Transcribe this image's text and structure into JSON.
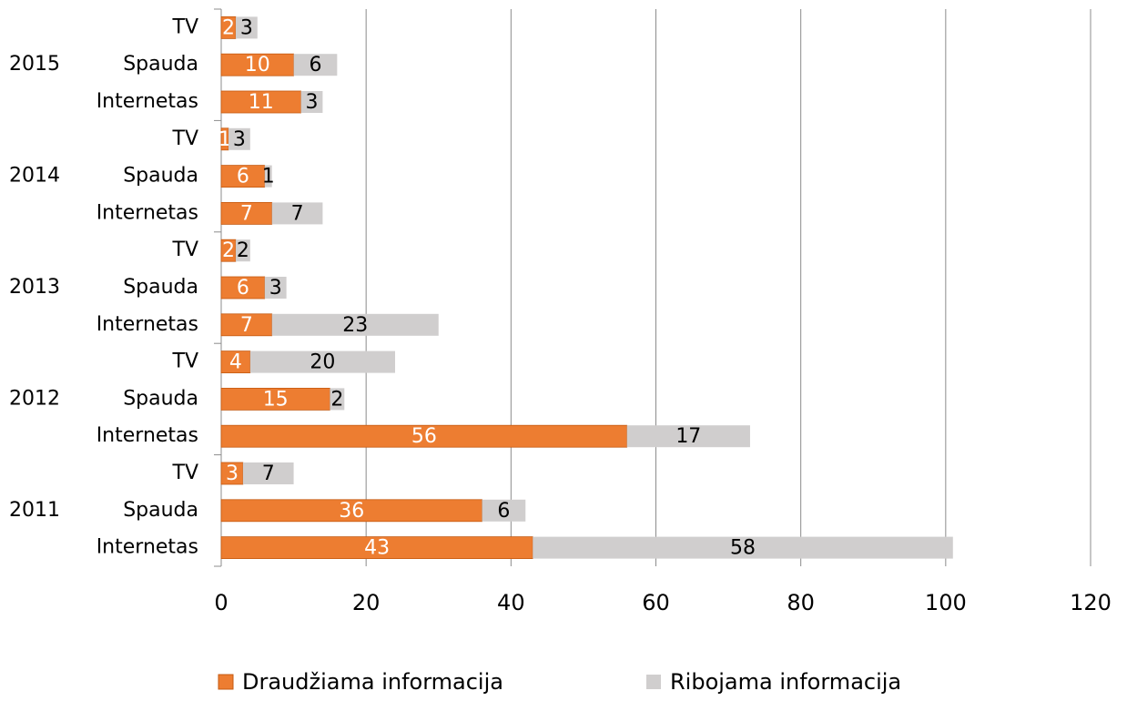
{
  "chart_data": {
    "type": "stacked_barh",
    "groups": [
      "2015",
      "2014",
      "2013",
      "2012",
      "2011"
    ],
    "categories": [
      "TV",
      "Spauda",
      "Internetas",
      "TV",
      "Spauda",
      "Internetas",
      "TV",
      "Spauda",
      "Internetas",
      "TV",
      "Spauda",
      "Internetas",
      "TV",
      "Spauda",
      "Internetas"
    ],
    "series": [
      {
        "name": "Draudžiama informacija",
        "color": "#ed7d31",
        "values": [
          2,
          10,
          11,
          1,
          6,
          7,
          2,
          6,
          7,
          4,
          15,
          56,
          3,
          36,
          43
        ]
      },
      {
        "name": "Ribojama informacija",
        "color": "#d0cece",
        "values": [
          3,
          6,
          3,
          3,
          1,
          7,
          2,
          3,
          23,
          20,
          2,
          17,
          7,
          6,
          58
        ]
      }
    ],
    "xlim": [
      0,
      120
    ],
    "xticks": [
      0,
      20,
      40,
      60,
      80,
      100,
      120
    ],
    "grid": true,
    "legend": "bottom"
  }
}
